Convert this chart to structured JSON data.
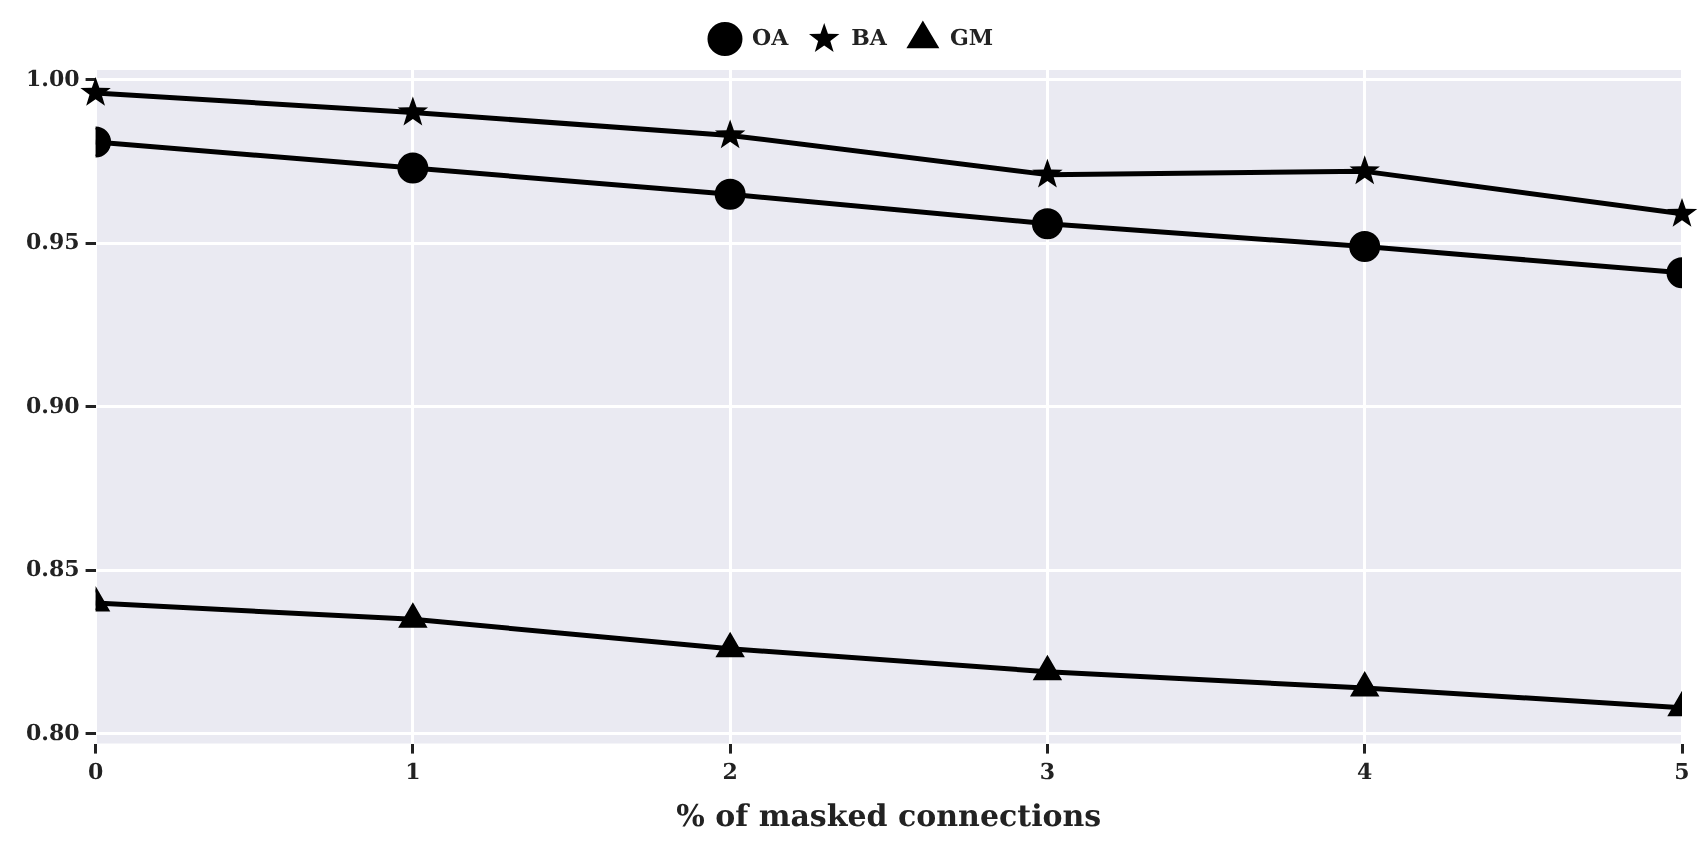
{
  "chart_data": {
    "type": "line",
    "xlabel": "% of masked connections",
    "x": [
      0,
      1,
      2,
      3,
      4,
      5
    ],
    "xlim": [
      0,
      5
    ],
    "xticks": [
      0,
      1,
      2,
      3,
      4,
      5
    ],
    "ylim": [
      0.797,
      1.003
    ],
    "yticks": [
      {
        "value": 0.8,
        "label": "0.80"
      },
      {
        "value": 0.85,
        "label": "0.85"
      },
      {
        "value": 0.9,
        "label": "0.90"
      },
      {
        "value": 0.95,
        "label": "0.95"
      },
      {
        "value": 1.0,
        "label": "1.00"
      }
    ],
    "grid": true,
    "legend": "top",
    "series": [
      {
        "name": "OA",
        "color": "#000000",
        "marker": "circle",
        "values": [
          0.981,
          0.973,
          0.965,
          0.956,
          0.949,
          0.941
        ]
      },
      {
        "name": "BA",
        "color": "#000000",
        "marker": "star",
        "values": [
          0.996,
          0.99,
          0.983,
          0.971,
          0.972,
          0.959
        ]
      },
      {
        "name": "GM",
        "color": "#000000",
        "marker": "triangle",
        "values": [
          0.84,
          0.835,
          0.826,
          0.819,
          0.814,
          0.808
        ]
      }
    ]
  }
}
